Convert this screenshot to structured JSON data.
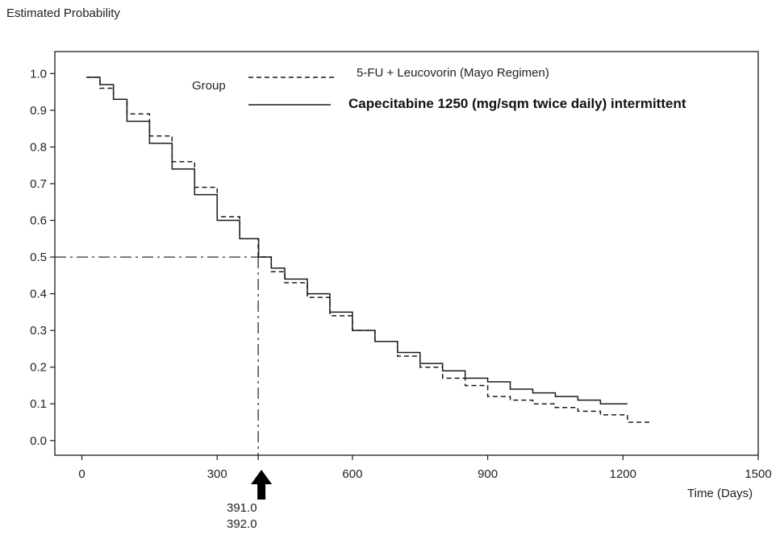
{
  "chart_data": {
    "type": "line",
    "title": "",
    "ylabel": "Estimated Probability",
    "xlabel": "Time (Days)",
    "xlim": [
      -60,
      1500
    ],
    "ylim": [
      -0.04,
      1.06
    ],
    "xticks": [
      0,
      300,
      600,
      900,
      1200,
      1500
    ],
    "yticks": [
      0.0,
      0.1,
      0.2,
      0.3,
      0.4,
      0.5,
      0.6,
      0.7,
      0.8,
      0.9,
      1.0
    ],
    "xtick_labels": [
      "0",
      "300",
      "600",
      "900",
      "1200",
      "1500"
    ],
    "ytick_labels": [
      "0.0",
      "0.1",
      "0.2",
      "0.3",
      "0.4",
      "0.5",
      "0.6",
      "0.7",
      "0.8",
      "0.9",
      "1.0"
    ],
    "legend_title": "Group",
    "series": [
      {
        "name": "5-FU + Leucovorin (Mayo Regimen)",
        "style": "dashed",
        "color": "#1a1a1a",
        "x": [
          10,
          40,
          70,
          100,
          150,
          200,
          250,
          300,
          350,
          391,
          420,
          450,
          500,
          550,
          600,
          650,
          700,
          750,
          800,
          850,
          900,
          950,
          1000,
          1050,
          1100,
          1150,
          1200,
          1210,
          1260
        ],
        "y": [
          0.99,
          0.96,
          0.93,
          0.89,
          0.83,
          0.76,
          0.69,
          0.61,
          0.55,
          0.5,
          0.46,
          0.43,
          0.39,
          0.34,
          0.3,
          0.27,
          0.23,
          0.2,
          0.17,
          0.15,
          0.12,
          0.11,
          0.1,
          0.09,
          0.08,
          0.07,
          0.07,
          0.05,
          0.05
        ]
      },
      {
        "name": "Capecitabine 1250 (mg/sqm twice daily) intermittent",
        "style": "solid",
        "color": "#1a1a1a",
        "x": [
          10,
          40,
          70,
          100,
          150,
          200,
          250,
          300,
          350,
          392,
          420,
          450,
          500,
          550,
          600,
          650,
          700,
          750,
          800,
          850,
          900,
          950,
          1000,
          1050,
          1100,
          1150,
          1210
        ],
        "y": [
          0.99,
          0.97,
          0.93,
          0.87,
          0.81,
          0.74,
          0.67,
          0.6,
          0.55,
          0.5,
          0.47,
          0.44,
          0.4,
          0.35,
          0.3,
          0.27,
          0.24,
          0.21,
          0.19,
          0.17,
          0.16,
          0.14,
          0.13,
          0.12,
          0.11,
          0.1,
          0.1
        ]
      }
    ],
    "median_line": {
      "y": 0.5,
      "x": 391
    },
    "annotations": {
      "median_label_1": "391.0",
      "median_label_2": "392.0"
    },
    "grid": false,
    "legend_placement": "top-center"
  }
}
